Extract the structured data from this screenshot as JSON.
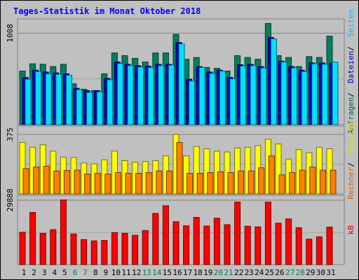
{
  "chart_data": [
    {
      "type": "bar",
      "title": "Tages-Statistik im Monat Oktober 2018",
      "categories": [
        "1",
        "2",
        "3",
        "4",
        "5",
        "6",
        "7",
        "8",
        "9",
        "10",
        "11",
        "12",
        "13",
        "14",
        "15",
        "16",
        "17",
        "18",
        "19",
        "20",
        "21",
        "22",
        "23",
        "24",
        "25",
        "26",
        "27",
        "28",
        "29",
        "30",
        "31"
      ],
      "weekend_days": [
        "6",
        "7",
        "13",
        "14",
        "20",
        "21",
        "27",
        "28"
      ],
      "ytick": "1008",
      "ylim": [
        0,
        1150
      ],
      "side_labels": [
        {
          "text": "Anfragen",
          "color": "#006050"
        },
        {
          "text": "Dateien",
          "color": "#0000c0"
        },
        {
          "text": "Seiten",
          "color": "#00c0ff"
        }
      ],
      "series": [
        {
          "name": "Anfragen",
          "color": "#008060",
          "values": [
            590,
            670,
            665,
            640,
            665,
            450,
            390,
            375,
            560,
            790,
            760,
            730,
            690,
            790,
            790,
            995,
            720,
            740,
            630,
            620,
            590,
            760,
            740,
            720,
            1115,
            760,
            740,
            640,
            750,
            740,
            975
          ]
        },
        {
          "name": "Dateien",
          "color": "#0000c0",
          "values": [
            520,
            600,
            580,
            570,
            560,
            400,
            375,
            375,
            510,
            690,
            665,
            650,
            645,
            665,
            665,
            905,
            500,
            640,
            580,
            600,
            520,
            660,
            665,
            640,
            960,
            700,
            640,
            600,
            680,
            680,
            680
          ]
        },
        {
          "name": "Seiten",
          "color": "#00e0ff",
          "values": [
            500,
            585,
            560,
            555,
            545,
            385,
            355,
            360,
            495,
            675,
            650,
            635,
            630,
            650,
            655,
            890,
            480,
            630,
            565,
            590,
            505,
            645,
            650,
            625,
            945,
            690,
            625,
            585,
            670,
            665,
            690
          ]
        }
      ]
    },
    {
      "type": "bar",
      "ytick": "375",
      "ylim": [
        0,
        420
      ],
      "side_labels": [
        {
          "text": "Rechner",
          "color": "#e06000"
        },
        {
          "text": "Besuche",
          "color": "#e0e000"
        }
      ],
      "series": [
        {
          "name": "Besuche",
          "color": "#ffff00",
          "values": [
            325,
            295,
            310,
            270,
            232,
            230,
            195,
            190,
            215,
            270,
            210,
            200,
            205,
            210,
            240,
            375,
            240,
            300,
            285,
            270,
            265,
            290,
            295,
            305,
            345,
            315,
            220,
            280,
            260,
            295,
            285
          ]
        },
        {
          "name": "Rechner",
          "color": "#ff8000",
          "values": [
            160,
            170,
            175,
            145,
            148,
            150,
            125,
            130,
            125,
            135,
            130,
            130,
            135,
            145,
            145,
            325,
            130,
            130,
            135,
            140,
            135,
            145,
            145,
            165,
            240,
            120,
            135,
            150,
            170,
            150,
            150
          ]
        }
      ]
    },
    {
      "type": "bar",
      "ytick": "29888",
      "ylim": [
        0,
        31500
      ],
      "side_labels": [
        {
          "text": "kB",
          "color": "#e00000"
        }
      ],
      "series": [
        {
          "name": "kB",
          "color": "#ff0000",
          "values": [
            15000,
            24200,
            14500,
            16200,
            30000,
            14200,
            11600,
            11000,
            11200,
            14800,
            14500,
            13600,
            15800,
            23700,
            27300,
            19900,
            18000,
            21900,
            17900,
            21500,
            18500,
            29000,
            17800,
            17500,
            29000,
            19200,
            21200,
            17100,
            11800,
            12900,
            17400
          ]
        }
      ]
    }
  ]
}
